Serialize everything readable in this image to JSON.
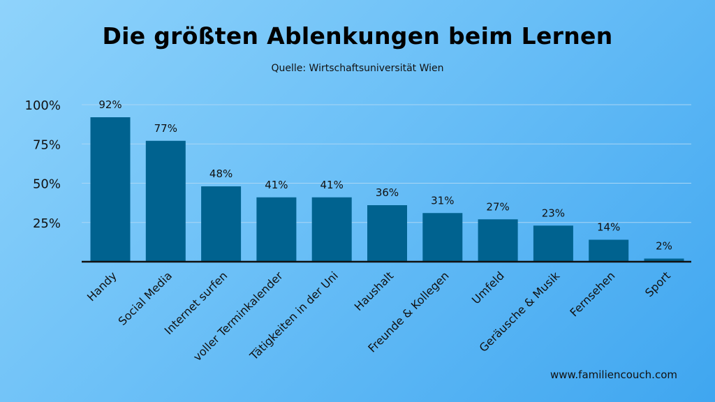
{
  "title": "Die größten Ablenkungen beim Lernen",
  "subtitle": "Quelle: Wirtschaftsuniversität Wien",
  "footer": "www.familiencouch.com",
  "colors": {
    "bar": "#00628f",
    "axis": "#111111",
    "grid": "#a9d6f5"
  },
  "chart_data": {
    "type": "bar",
    "title": "Die größten Ablenkungen beim Lernen",
    "subtitle": "Quelle: Wirtschaftsuniversität Wien",
    "categories": [
      "Handy",
      "Social Media",
      "Internet surfen",
      "voller Terminkalender",
      "Tätigkeiten in der Uni",
      "Haushalt",
      "Freunde & Kollegen",
      "Umfeld",
      "Geräusche & Musik",
      "Fernsehen",
      "Sport"
    ],
    "values": [
      92,
      77,
      48,
      41,
      41,
      36,
      31,
      27,
      23,
      14,
      2
    ],
    "data_labels": [
      "92%",
      "77%",
      "48%",
      "41%",
      "41%",
      "36%",
      "31%",
      "27%",
      "23%",
      "14%",
      "2%"
    ],
    "ytick_values": [
      25,
      50,
      75,
      100
    ],
    "ytick_labels": [
      "25%",
      "50%",
      "75%",
      "100%"
    ],
    "ylim": [
      0,
      100
    ],
    "xlabel": "",
    "ylabel": "",
    "grid": true,
    "legend": "none"
  }
}
